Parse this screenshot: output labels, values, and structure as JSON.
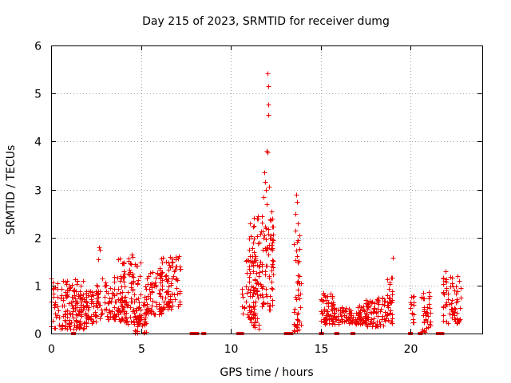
{
  "chart_data": {
    "type": "scatter",
    "title": "Day 215 of 2023, SRMTID for receiver dumg",
    "xlabel": "GPS time / hours",
    "ylabel": "SRMTID / TECUs",
    "xlim": [
      0,
      24
    ],
    "ylim": [
      0,
      6
    ],
    "xticks": [
      "0",
      "5",
      "10",
      "15",
      "20"
    ],
    "yticks": [
      "0",
      "1",
      "2",
      "3",
      "4",
      "5",
      "6"
    ],
    "grid": true,
    "marker": "plus",
    "color": "#ee0000",
    "series": [
      {
        "name": "SRMTID",
        "clusters": [
          {
            "x": [
              0.0,
              2.0
            ],
            "y": [
              0.1,
              1.15
            ],
            "n": 140
          },
          {
            "x": [
              1.3,
              2.6
            ],
            "y": [
              0.2,
              0.9
            ],
            "n": 70
          },
          {
            "x": [
              2.5,
              2.7
            ],
            "y": [
              0.6,
              1.2
            ],
            "n": 15
          },
          {
            "x": [
              2.7,
              4.2
            ],
            "y": [
              0.3,
              1.2
            ],
            "n": 90
          },
          {
            "x": [
              3.8,
              5.0
            ],
            "y": [
              0.2,
              1.6
            ],
            "n": 90
          },
          {
            "x": [
              4.6,
              5.4
            ],
            "y": [
              0.0,
              0.7
            ],
            "n": 40
          },
          {
            "x": [
              5.2,
              6.2
            ],
            "y": [
              0.4,
              1.3
            ],
            "n": 70
          },
          {
            "x": [
              6.0,
              7.2
            ],
            "y": [
              0.5,
              1.6
            ],
            "n": 90
          },
          {
            "x": [
              10.6,
              11.5
            ],
            "y": [
              0.3,
              1.7
            ],
            "n": 60
          },
          {
            "x": [
              11.0,
              11.7
            ],
            "y": [
              0.1,
              2.5
            ],
            "n": 60
          },
          {
            "x": [
              11.7,
              12.4
            ],
            "y": [
              0.5,
              2.4
            ],
            "n": 70
          },
          {
            "x": [
              13.5,
              13.9
            ],
            "y": [
              0.0,
              2.0
            ],
            "n": 40
          },
          {
            "x": [
              15.0,
              15.7
            ],
            "y": [
              0.2,
              0.85
            ],
            "n": 60
          },
          {
            "x": [
              15.7,
              16.8
            ],
            "y": [
              0.2,
              0.55
            ],
            "n": 60
          },
          {
            "x": [
              16.9,
              17.6
            ],
            "y": [
              0.2,
              0.6
            ],
            "n": 50
          },
          {
            "x": [
              17.5,
              19.0
            ],
            "y": [
              0.15,
              0.75
            ],
            "n": 90
          },
          {
            "x": [
              18.6,
              19.0
            ],
            "y": [
              0.5,
              1.2
            ],
            "n": 15
          },
          {
            "x": [
              20.0,
              20.2
            ],
            "y": [
              0.2,
              0.95
            ],
            "n": 15
          },
          {
            "x": [
              20.6,
              21.1
            ],
            "y": [
              0.0,
              0.9
            ],
            "n": 40
          },
          {
            "x": [
              21.8,
              22.8
            ],
            "y": [
              0.2,
              1.2
            ],
            "n": 70
          }
        ],
        "points": [
          {
            "x": 12.05,
            "y": 5.42
          },
          {
            "x": 12.1,
            "y": 5.15
          },
          {
            "x": 12.1,
            "y": 4.77
          },
          {
            "x": 12.08,
            "y": 4.56
          },
          {
            "x": 12.02,
            "y": 3.8
          },
          {
            "x": 12.05,
            "y": 3.78
          },
          {
            "x": 11.85,
            "y": 3.35
          },
          {
            "x": 11.9,
            "y": 3.15
          },
          {
            "x": 11.95,
            "y": 3.0
          },
          {
            "x": 11.8,
            "y": 2.85
          },
          {
            "x": 12.0,
            "y": 2.7
          },
          {
            "x": 12.15,
            "y": 3.05
          },
          {
            "x": 11.75,
            "y": 2.45
          },
          {
            "x": 11.95,
            "y": 2.2
          },
          {
            "x": 11.85,
            "y": 2.05
          },
          {
            "x": 13.65,
            "y": 2.9
          },
          {
            "x": 13.7,
            "y": 2.75
          },
          {
            "x": 13.6,
            "y": 2.5
          },
          {
            "x": 13.75,
            "y": 2.3
          },
          {
            "x": 13.6,
            "y": 2.15
          },
          {
            "x": 13.8,
            "y": 2.05
          },
          {
            "x": 2.65,
            "y": 1.8
          },
          {
            "x": 2.7,
            "y": 1.75
          },
          {
            "x": 2.6,
            "y": 1.55
          },
          {
            "x": 4.5,
            "y": 1.65
          },
          {
            "x": 4.45,
            "y": 1.45
          },
          {
            "x": 3.75,
            "y": 1.55
          },
          {
            "x": 19.0,
            "y": 1.58
          },
          {
            "x": 21.95,
            "y": 1.3
          },
          {
            "x": 12.25,
            "y": 2.55
          },
          {
            "x": 12.3,
            "y": 1.9
          },
          {
            "x": 11.45,
            "y": 2.4
          },
          {
            "x": 11.3,
            "y": 2.25
          },
          {
            "x": 6.4,
            "y": 1.5
          },
          {
            "x": 7.1,
            "y": 1.62
          },
          {
            "x": 13.55,
            "y": 0.05
          },
          {
            "x": 4.7,
            "y": 0.05
          },
          {
            "x": 11.55,
            "y": 0.1
          }
        ],
        "gaps": [
          1.25,
          7.85,
          8.1,
          8.5,
          10.45,
          10.6,
          13.1,
          13.35,
          15.05,
          15.9,
          16.8,
          20.0,
          20.55,
          21.55,
          21.75
        ]
      }
    ]
  }
}
